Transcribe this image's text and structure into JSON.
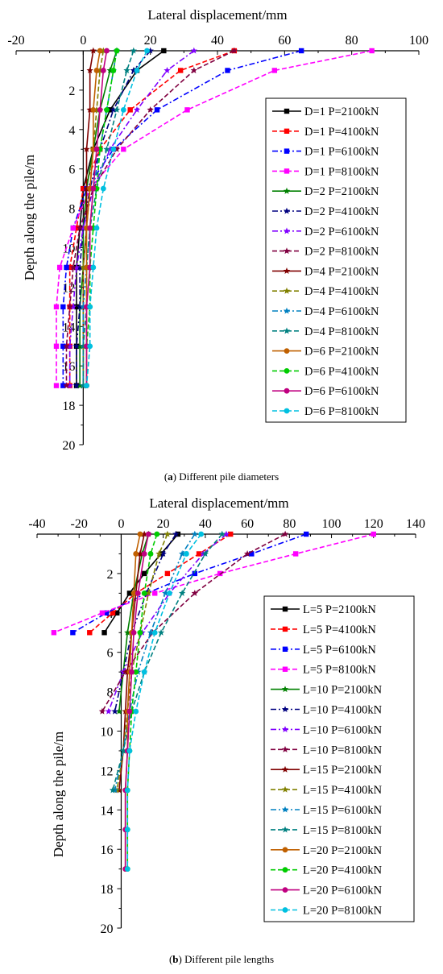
{
  "chart_data": [
    {
      "type": "line",
      "panel": "a",
      "caption_label": "(a)",
      "caption_text": " Different pile diameters",
      "xlabel": "Lateral displacement/mm",
      "ylabel": "Depth along the pile/m",
      "xlim": [
        -20,
        100
      ],
      "ylim": [
        20,
        0
      ],
      "xticks": [
        -20,
        0,
        20,
        40,
        60,
        80,
        100
      ],
      "yticks": [
        2,
        4,
        6,
        8,
        10,
        12,
        14,
        16,
        18,
        20
      ],
      "x_axis_position": "top",
      "grid": false,
      "legend_position": "right",
      "depths": [
        0,
        1,
        3,
        5,
        7,
        9,
        11,
        13,
        15,
        17
      ],
      "series": [
        {
          "name": "D=1 P=2100kN",
          "color": "#000000",
          "dash": "solid",
          "marker": "square",
          "x": [
            24,
            16,
            8,
            3,
            0,
            -1,
            -2,
            -2,
            -2,
            -2
          ]
        },
        {
          "name": "D=1 P=4100kN",
          "color": "#ff0000",
          "dash": "dash",
          "marker": "square",
          "x": [
            45,
            29,
            14,
            5,
            0,
            -2,
            -4,
            -4,
            -4,
            -4
          ]
        },
        {
          "name": "D=1  P=6100kN",
          "color": "#0000ff",
          "dash": "dashdot",
          "marker": "square",
          "x": [
            65,
            43,
            22,
            9,
            1,
            -3,
            -5,
            -6,
            -6,
            -6
          ]
        },
        {
          "name": "D=1 P=8100kN",
          "color": "#ff00ff",
          "dash": "dash",
          "marker": "square",
          "x": [
            86,
            57,
            31,
            12,
            2,
            -3,
            -7,
            -8,
            -8,
            -8
          ]
        },
        {
          "name": "D=2  P=2100kN",
          "color": "#008000",
          "dash": "solid",
          "marker": "star",
          "x": [
            10,
            8,
            5,
            3,
            1,
            0,
            0,
            -1,
            -1,
            -1
          ]
        },
        {
          "name": "D=2  P=4100kN",
          "color": "#000080",
          "dash": "dashdot",
          "marker": "star",
          "x": [
            20,
            15,
            9,
            5,
            2,
            0,
            -1,
            -1,
            -2,
            -2
          ]
        },
        {
          "name": "D=2  P=6100kN",
          "color": "#8000ff",
          "dash": "dashdot",
          "marker": "star",
          "x": [
            33,
            25,
            16,
            8,
            3,
            0,
            -2,
            -3,
            -4,
            -4
          ]
        },
        {
          "name": "D=2  P=8100kN",
          "color": "#800040",
          "dash": "dash",
          "marker": "star",
          "x": [
            45,
            33,
            20,
            10,
            3,
            -1,
            -3,
            -4,
            -5,
            -5
          ]
        },
        {
          "name": "D=4 P=2100kN",
          "color": "#800000",
          "dash": "solid",
          "marker": "star",
          "x": [
            3,
            2,
            2,
            1,
            1,
            1,
            0,
            0,
            0,
            0
          ]
        },
        {
          "name": "D=4  P=4100kN",
          "color": "#808000",
          "dash": "dash",
          "marker": "star",
          "x": [
            6,
            5,
            4,
            3,
            2,
            1,
            0,
            0,
            0,
            0
          ]
        },
        {
          "name": "D=4  P=6100kN",
          "color": "#0080c0",
          "dash": "dashdot",
          "marker": "star",
          "x": [
            10,
            9,
            7,
            5,
            3,
            2,
            1,
            0,
            0,
            0
          ]
        },
        {
          "name": "D=4  P=8100kN",
          "color": "#008080",
          "dash": "dash",
          "marker": "star",
          "x": [
            15,
            13,
            10,
            7,
            4,
            2,
            1,
            1,
            0,
            0
          ]
        },
        {
          "name": "D=6  P=2100kN",
          "color": "#c06000",
          "dash": "solid",
          "marker": "circle",
          "x": [
            5,
            4,
            3,
            3,
            2,
            1,
            1,
            1,
            1,
            1
          ]
        },
        {
          "name": "D=6 P=4100kN",
          "color": "#00cc00",
          "dash": "dash",
          "marker": "circle",
          "x": [
            10,
            9,
            7,
            5,
            4,
            3,
            2,
            2,
            1,
            1
          ]
        },
        {
          "name": "D=6 P=6100kN",
          "color": "#c00080",
          "dash": "solid",
          "marker": "circle",
          "x": [
            7,
            6,
            5,
            4,
            3,
            2,
            2,
            1,
            1,
            1
          ]
        },
        {
          "name": "D=6 P=8100kN",
          "color": "#00c0e0",
          "dash": "dash",
          "marker": "circle",
          "x": [
            19,
            16,
            12,
            9,
            6,
            4,
            3,
            2,
            2,
            1
          ]
        }
      ]
    },
    {
      "type": "line",
      "panel": "b",
      "caption_label": "(b)",
      "caption_text": " Different pile lengths",
      "xlabel": "Lateral displacement/mm",
      "ylabel": "Depth along the pile/m",
      "xlim": [
        -40,
        140
      ],
      "ylim": [
        20,
        0
      ],
      "xticks": [
        -40,
        -20,
        0,
        20,
        40,
        60,
        80,
        100,
        120,
        140
      ],
      "yticks": [
        2,
        4,
        6,
        8,
        10,
        12,
        14,
        16,
        18,
        20
      ],
      "x_axis_position": "top",
      "grid": false,
      "legend_position": "right",
      "series": [
        {
          "name": "L=5 P=2100kN",
          "color": "#000000",
          "dash": "solid",
          "marker": "square",
          "depths": [
            0,
            1,
            2,
            3,
            4,
            5
          ],
          "x": [
            27,
            19,
            11,
            4,
            -2,
            -8
          ]
        },
        {
          "name": "L=5 P=4100kN",
          "color": "#ff0000",
          "dash": "dash",
          "marker": "square",
          "depths": [
            0,
            1,
            2,
            3,
            4,
            5
          ],
          "x": [
            52,
            37,
            22,
            7,
            -4,
            -15
          ]
        },
        {
          "name": "L=5  P=6100kN",
          "color": "#0000ff",
          "dash": "dashdot",
          "marker": "square",
          "depths": [
            0,
            1,
            2,
            3,
            4,
            5
          ],
          "x": [
            88,
            62,
            35,
            12,
            -7,
            -23
          ]
        },
        {
          "name": "L=5 P=8100kN",
          "color": "#ff00ff",
          "dash": "dash",
          "marker": "square",
          "depths": [
            0,
            1,
            2,
            3,
            4,
            5
          ],
          "x": [
            120,
            83,
            47,
            16,
            -9,
            -32
          ]
        },
        {
          "name": "L=10  P=2100kN",
          "color": "#008000",
          "dash": "solid",
          "marker": "star",
          "depths": [
            0,
            1,
            3,
            5,
            7,
            9
          ],
          "x": [
            13,
            10,
            6,
            3,
            1,
            -1
          ]
        },
        {
          "name": "L=10 P=4100kN",
          "color": "#000080",
          "dash": "dashdot",
          "marker": "star",
          "depths": [
            0,
            1,
            3,
            5,
            7,
            9
          ],
          "x": [
            26,
            20,
            12,
            5,
            1,
            -3
          ]
        },
        {
          "name": "L=10 P=6100kN",
          "color": "#8000ff",
          "dash": "dashdot",
          "marker": "star",
          "depths": [
            0,
            1,
            3,
            5,
            7,
            9
          ],
          "x": [
            50,
            39,
            23,
            10,
            1,
            -6
          ]
        },
        {
          "name": "L=10 P=8100kN",
          "color": "#800040",
          "dash": "dash",
          "marker": "star",
          "depths": [
            0,
            1,
            3,
            5,
            7,
            9
          ],
          "x": [
            78,
            60,
            35,
            15,
            2,
            -9
          ]
        },
        {
          "name": "L=15 P=2100kN",
          "color": "#800000",
          "dash": "solid",
          "marker": "star",
          "depths": [
            0,
            1,
            3,
            5,
            7,
            9,
            11,
            13
          ],
          "x": [
            11,
            9,
            7,
            5,
            3,
            2,
            1,
            -1
          ]
        },
        {
          "name": "L=15  P=4100kN",
          "color": "#808000",
          "dash": "dash",
          "marker": "star",
          "depths": [
            0,
            1,
            3,
            5,
            7,
            9,
            11,
            13
          ],
          "x": [
            22,
            18,
            13,
            9,
            5,
            3,
            1,
            -2
          ]
        },
        {
          "name": "L=15  P=6100kN",
          "color": "#0080c0",
          "dash": "dashdot",
          "marker": "star",
          "depths": [
            0,
            1,
            3,
            5,
            7,
            9,
            11,
            13
          ],
          "x": [
            35,
            29,
            21,
            14,
            8,
            4,
            1,
            -3
          ]
        },
        {
          "name": "L=15  P=8100kN",
          "color": "#008080",
          "dash": "dash",
          "marker": "star",
          "depths": [
            0,
            1,
            3,
            5,
            7,
            9,
            11,
            13
          ],
          "x": [
            48,
            40,
            29,
            19,
            11,
            5,
            1,
            -4
          ]
        },
        {
          "name": "L=20  P=2100kN",
          "color": "#c06000",
          "dash": "solid",
          "marker": "circle",
          "depths": [
            0,
            1,
            3,
            5,
            7,
            9,
            11,
            13,
            15,
            17
          ],
          "x": [
            9,
            7,
            6,
            5,
            4,
            3,
            3,
            2,
            2,
            2
          ]
        },
        {
          "name": "L=20 P=4100kN",
          "color": "#00cc00",
          "dash": "dash",
          "marker": "circle",
          "depths": [
            0,
            1,
            3,
            5,
            7,
            9,
            11,
            13,
            15,
            17
          ],
          "x": [
            17,
            14,
            11,
            9,
            7,
            5,
            4,
            3,
            3,
            3
          ]
        },
        {
          "name": "L=20 P=6100kN",
          "color": "#c00080",
          "dash": "solid",
          "marker": "circle",
          "depths": [
            0,
            1,
            3,
            5,
            7,
            9,
            11,
            13,
            15,
            17
          ],
          "x": [
            13,
            11,
            8,
            6,
            5,
            4,
            3,
            2,
            2,
            2
          ]
        },
        {
          "name": "L=20 P=8100kN",
          "color": "#00c0e0",
          "dash": "dash",
          "marker": "circle",
          "depths": [
            0,
            1,
            3,
            5,
            7,
            9,
            11,
            13,
            15,
            17
          ],
          "x": [
            38,
            31,
            23,
            16,
            11,
            7,
            4,
            3,
            3,
            3
          ]
        }
      ]
    }
  ]
}
